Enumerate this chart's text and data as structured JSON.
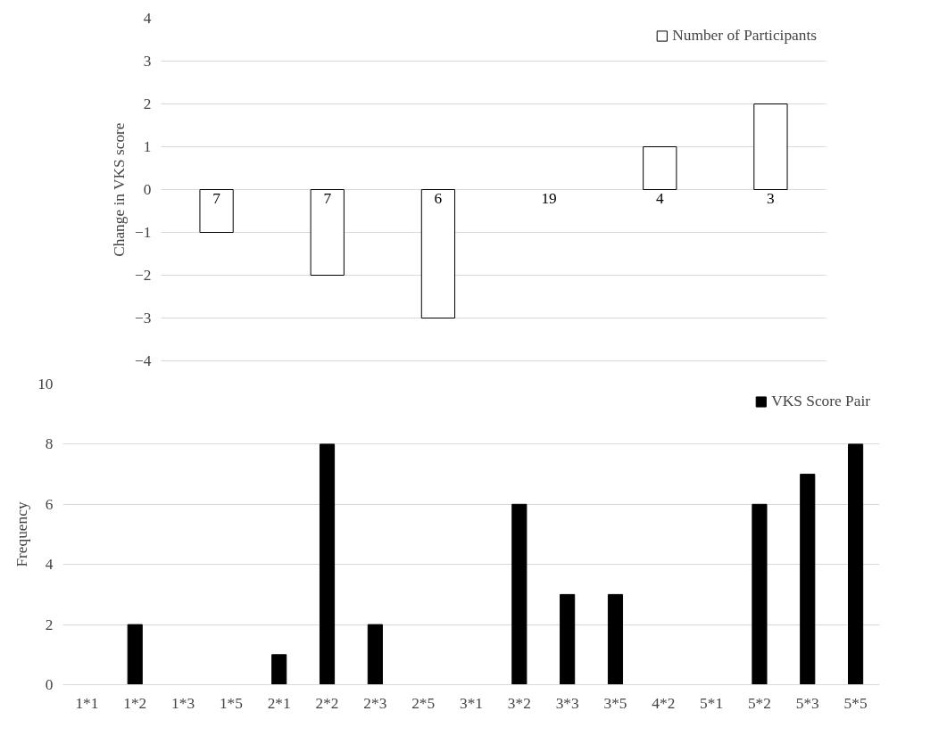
{
  "chart_data": [
    {
      "type": "bar",
      "ylabel": "Change in VKS score",
      "categories": [
        null,
        null,
        null,
        null,
        null,
        null
      ],
      "series": [
        {
          "name": "Number of Participants",
          "color": "#ffffff",
          "values": [
            -1,
            -2,
            -3,
            0,
            1,
            2
          ]
        }
      ],
      "annotations": [
        {
          "text": "7",
          "y": 0
        },
        {
          "text": "7",
          "y": 0
        },
        {
          "text": "6",
          "y": 0
        },
        {
          "text": "19",
          "y": 0
        },
        {
          "text": "4",
          "y": 0
        },
        {
          "text": "3",
          "y": 0
        }
      ],
      "ylim": [
        -4,
        4
      ],
      "yticks": [
        -4,
        -3,
        -2,
        -1,
        0,
        1,
        2,
        3,
        4
      ],
      "grid": "y",
      "legend": "top right"
    },
    {
      "type": "bar",
      "ylabel": "Frequency",
      "categories": [
        "1*1",
        "1*2",
        "1*3",
        "1*5",
        "2*1",
        "2*2",
        "2*3",
        "2*5",
        "3*1",
        "3*2",
        "3*3",
        "3*5",
        "4*2",
        "5*1",
        "5*2",
        "5*3",
        "5*5"
      ],
      "series": [
        {
          "name": "VKS Score Pair",
          "color": "#000000",
          "values": [
            0,
            2,
            0,
            0,
            1,
            8,
            2,
            0,
            0,
            6,
            3,
            3,
            0,
            0,
            6,
            7,
            8
          ]
        }
      ],
      "ylim": [
        0,
        10
      ],
      "yticks": [
        0,
        2,
        4,
        6,
        8,
        10
      ],
      "grid": "y",
      "legend": "top right"
    }
  ]
}
